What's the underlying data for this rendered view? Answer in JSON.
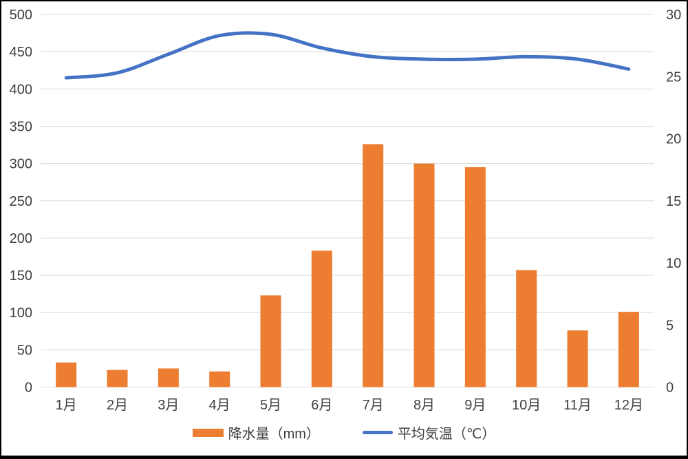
{
  "chart_data": {
    "type": "combo",
    "title": "",
    "xlabel": "",
    "ylabel_left": "",
    "ylabel_right": "",
    "grid": true,
    "legend_position": "bottom",
    "categories": [
      "1月",
      "2月",
      "3月",
      "4月",
      "5月",
      "6月",
      "7月",
      "8月",
      "9月",
      "10月",
      "11月",
      "12月"
    ],
    "series": [
      {
        "name": "降水量（mm）",
        "type": "bar",
        "axis": "left",
        "color": "#ED7D31",
        "values": [
          33,
          23,
          25,
          21,
          123,
          183,
          326,
          300,
          295,
          157,
          76,
          101
        ]
      },
      {
        "name": "平均気温（℃）",
        "type": "line",
        "axis": "right",
        "color": "#4472C4",
        "values": [
          24.9,
          25.3,
          26.8,
          28.3,
          28.4,
          27.3,
          26.6,
          26.4,
          26.4,
          26.6,
          26.4,
          25.6
        ]
      }
    ],
    "y_left": {
      "min": 0,
      "max": 500,
      "step": 50,
      "ticks": [
        "0",
        "50",
        "100",
        "150",
        "200",
        "250",
        "300",
        "350",
        "400",
        "450",
        "500"
      ]
    },
    "y_right": {
      "min": 0,
      "max": 30,
      "step": 5,
      "ticks": [
        "0",
        "5",
        "10",
        "15",
        "20",
        "25",
        "30"
      ]
    }
  },
  "style": {
    "gridline_color": "#D9D9D9",
    "axis_text_color": "#3f3f3f",
    "background": "#ffffff",
    "border_color": "#000000"
  }
}
